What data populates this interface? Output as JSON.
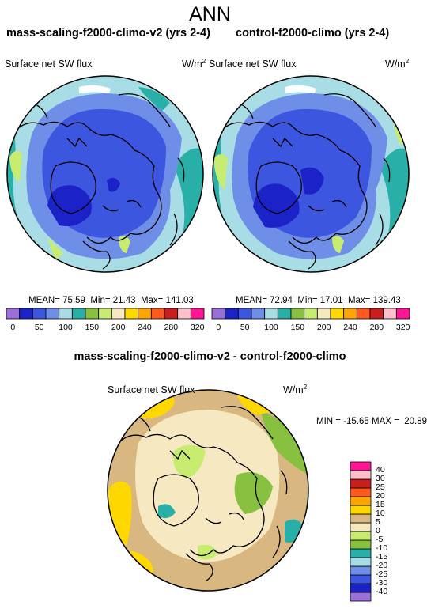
{
  "main_title": "ANN",
  "panels": [
    {
      "title": "mass-scaling-f2000-climo-v2 (yrs 2-4)",
      "variable": "Surface net SW flux",
      "units_base": "W/m",
      "units_exp": "2",
      "stats": {
        "mean_label": "MEAN=",
        "mean": "75.59",
        "min_label": "Min=",
        "min": "21.43",
        "max_label": "Max=",
        "max": "141.03"
      }
    },
    {
      "title": "control-f2000-climo (yrs 2-4)",
      "variable": "Surface net SW flux",
      "units_base": "W/m",
      "units_exp": "2",
      "stats": {
        "mean_label": "MEAN=",
        "mean": "72.94",
        "min_label": "Min=",
        "min": "17.01",
        "max_label": "Max=",
        "max": "139.43"
      }
    }
  ],
  "colorbar": {
    "colors": [
      "#9a6fd8",
      "#1a22c8",
      "#3d56e0",
      "#6f8ee8",
      "#a8dde6",
      "#28b0a8",
      "#88c040",
      "#c8ec70",
      "#f6e8c0",
      "#ffd800",
      "#ffa500",
      "#ff5a1e",
      "#c81e1e",
      "#ffc0cc",
      "#ff1493"
    ],
    "tick_labels": [
      "0",
      "50",
      "100",
      "150",
      "200",
      "240",
      "280",
      "320"
    ]
  },
  "diff_panel": {
    "title": "mass-scaling-f2000-climo-v2 - control-f2000-climo",
    "variable": "Surface net SW flux",
    "units_base": "W/m",
    "units_exp": "2",
    "minmax": "MIN = -15.65 MAX =  20.89",
    "colorbar": {
      "colors": [
        "#9a6fd8",
        "#1a22c8",
        "#3d56e0",
        "#6f8ee8",
        "#a8dde6",
        "#28b0a8",
        "#88c040",
        "#c8ec70",
        "#f6e8c0",
        "#d8b880",
        "#ffd800",
        "#ffa500",
        "#ff5a1e",
        "#c81e1e",
        "#ffc0cc",
        "#ff1493"
      ],
      "tick_labels": [
        "-40",
        "-30",
        "-25",
        "-20",
        "-15",
        "-10",
        "-5",
        "0",
        "5",
        "10",
        "15",
        "20",
        "25",
        "30",
        "40"
      ]
    }
  }
}
